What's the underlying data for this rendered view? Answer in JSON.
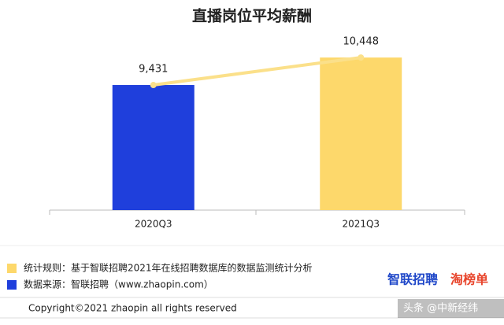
{
  "chart_data": {
    "type": "bar",
    "title": "直播岗位平均薪酬",
    "categories": [
      "2020Q3",
      "2021Q3"
    ],
    "values": [
      9431,
      10448
    ],
    "value_labels": [
      "9,431",
      "10,448"
    ],
    "colors": [
      "#1f3fdc",
      "#fdd86b"
    ],
    "line_color": "#fbe08a",
    "ylim": [
      4800,
      11500
    ]
  },
  "notes": [
    {
      "text": "统计规则：基于智联招聘2021年在线招聘数据库的数据监测统计分析",
      "color": "#fdd86b"
    },
    {
      "text": "数据来源：智联招聘（www.zhaopin.com）",
      "color": "#1f3fdc"
    }
  ],
  "logos": [
    "智联招聘",
    "淘榜单"
  ],
  "footer": "Copyright©2021 zhaopin all rights reserved",
  "watermark": "头条 @中新经纬"
}
